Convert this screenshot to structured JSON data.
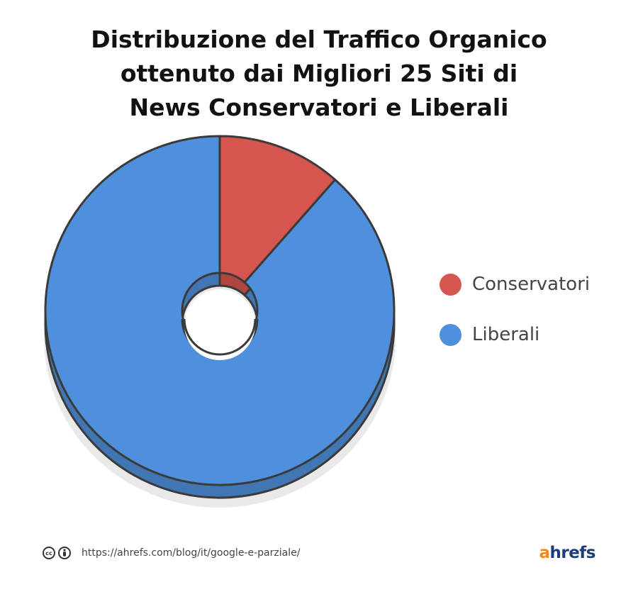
{
  "chart_data": {
    "type": "pie",
    "title": [
      "Distribuzione del Traffico Organico",
      "ottenuto dai Migliori 25 Siti di",
      "News Conservatori e Liberali"
    ],
    "slices": [
      {
        "label": "Conservatori",
        "value": 11.5,
        "color": "#d4564e"
      },
      {
        "label": "Liberali",
        "value": 88.5,
        "color": "#4f90dc"
      }
    ],
    "style": "3d-donut",
    "legend_position": "right"
  },
  "footer": {
    "url": "https://ahrefs.com/blog/it/google-e-parziale/",
    "cc_icon": "creative-commons-icon",
    "by_icon": "attribution-icon"
  },
  "logo": {
    "a": "a",
    "rest": "hrefs"
  },
  "colors": {
    "logo_accent": "#f28a1a",
    "logo_main": "#1c3e78",
    "outline": "#3a3a3a"
  }
}
